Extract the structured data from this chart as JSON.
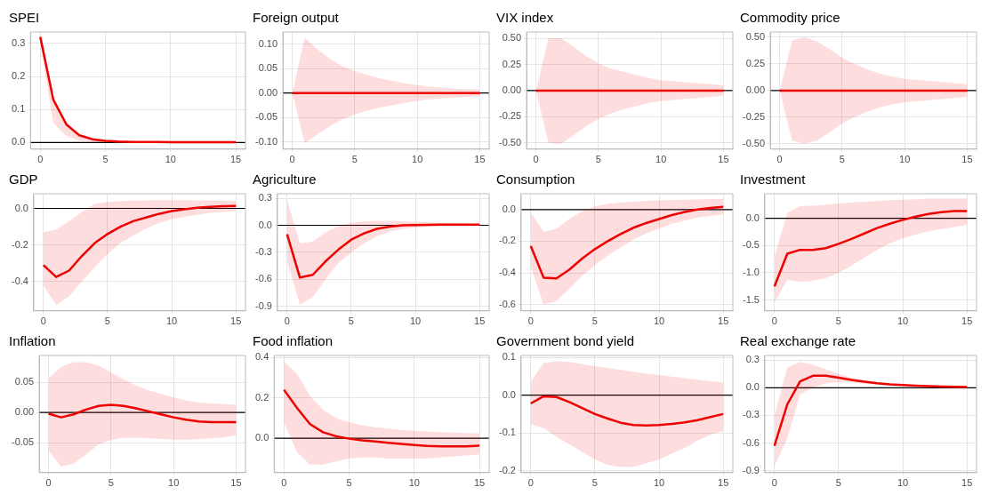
{
  "chart_data": [
    {
      "type": "line",
      "title": "SPEI",
      "x": [
        0,
        1,
        2,
        3,
        4,
        5,
        6,
        7,
        8,
        9,
        10,
        11,
        12,
        13,
        14,
        15
      ],
      "xlim": [
        -0.75,
        15.75
      ],
      "xticks": [
        0,
        5,
        10,
        15
      ],
      "ylim": [
        -0.02,
        0.335
      ],
      "yticks": [
        {
          "value": 0,
          "label": "0.0"
        },
        0.1,
        0.2,
        0.3
      ],
      "grid": true,
      "marker": "none",
      "ref_lines": [
        {
          "axis": "y",
          "value": 0,
          "color": "#000000"
        }
      ],
      "series": [
        {
          "color": "#ee0000",
          "values": [
            0.32,
            0.13,
            0.055,
            0.022,
            0.01,
            0.005,
            0.003,
            0.002,
            0.002,
            0.002,
            0.001,
            0.001,
            0.001,
            0.001,
            0.001,
            0.001
          ],
          "lower": [
            0.3,
            0.06,
            0.02,
            0.006,
            0.002,
            0.001,
            0,
            0,
            0,
            0,
            0,
            0,
            0,
            0,
            0,
            0
          ],
          "upper": [
            0.32,
            0.13,
            0.06,
            0.025,
            0.012,
            0.006,
            0.004,
            0.003,
            0.003,
            0.002,
            0.002,
            0.002,
            0.002,
            0.002,
            0.002,
            0.002
          ]
        }
      ]
    },
    {
      "type": "line",
      "title": "Foreign output",
      "x": [
        0,
        1,
        2,
        3,
        4,
        5,
        6,
        7,
        8,
        9,
        10,
        11,
        12,
        13,
        14,
        15
      ],
      "xlim": [
        -0.75,
        15.75
      ],
      "xticks": [
        0,
        5,
        10,
        15
      ],
      "ylim": [
        -0.115,
        0.125
      ],
      "yticks": [
        {
          "value": -0.1,
          "label": "-0.10"
        },
        -0.05,
        {
          "value": 0,
          "label": "0.00"
        },
        0.05,
        {
          "value": 0.1,
          "label": "0.10"
        }
      ],
      "grid": true,
      "marker": "none",
      "ref_lines": [
        {
          "axis": "y",
          "value": 0,
          "color": "#000000"
        }
      ],
      "series": [
        {
          "color": "#ee0000",
          "values": [
            0,
            0,
            0,
            0,
            0,
            0,
            0,
            0,
            0,
            0,
            0,
            0,
            0,
            0,
            0,
            0
          ],
          "lower": [
            0,
            -0.103,
            -0.085,
            -0.068,
            -0.054,
            -0.044,
            -0.036,
            -0.03,
            -0.025,
            -0.02,
            -0.016,
            -0.013,
            -0.011,
            -0.009,
            -0.008,
            -0.007
          ],
          "upper": [
            0,
            0.113,
            0.09,
            0.07,
            0.055,
            0.045,
            0.037,
            0.03,
            0.025,
            0.02,
            0.016,
            0.013,
            0.011,
            0.009,
            0.008,
            0.007
          ]
        }
      ]
    },
    {
      "type": "line",
      "title": "VIX index",
      "x": [
        0,
        1,
        2,
        3,
        4,
        5,
        6,
        7,
        8,
        9,
        10,
        11,
        12,
        13,
        14,
        15
      ],
      "xlim": [
        -0.75,
        15.75
      ],
      "xticks": [
        0,
        5,
        10,
        15
      ],
      "ylim": [
        -0.56,
        0.56
      ],
      "yticks": [
        {
          "value": -0.5,
          "label": "-0.50"
        },
        -0.25,
        {
          "value": 0,
          "label": "0.00"
        },
        0.25,
        {
          "value": 0.5,
          "label": "0.50"
        }
      ],
      "grid": true,
      "marker": "none",
      "ref_lines": [
        {
          "axis": "y",
          "value": 0,
          "color": "#000000"
        }
      ],
      "series": [
        {
          "color": "#ee0000",
          "values": [
            0,
            0,
            0,
            0,
            0,
            0,
            0,
            0,
            0,
            0,
            0,
            0,
            0,
            0,
            0,
            0
          ],
          "lower": [
            0,
            -0.5,
            -0.51,
            -0.43,
            -0.34,
            -0.27,
            -0.22,
            -0.18,
            -0.15,
            -0.12,
            -0.1,
            -0.09,
            -0.08,
            -0.07,
            -0.06,
            -0.05
          ],
          "upper": [
            0,
            0.5,
            0.5,
            0.42,
            0.33,
            0.26,
            0.21,
            0.18,
            0.15,
            0.12,
            0.1,
            0.09,
            0.08,
            0.07,
            0.06,
            0.05
          ]
        }
      ]
    },
    {
      "type": "line",
      "title": "Commodity price",
      "x": [
        0,
        1,
        2,
        3,
        4,
        5,
        6,
        7,
        8,
        9,
        10,
        11,
        12,
        13,
        14,
        15
      ],
      "xlim": [
        -0.75,
        15.75
      ],
      "xticks": [
        0,
        5,
        10,
        15
      ],
      "ylim": [
        -0.55,
        0.55
      ],
      "yticks": [
        {
          "value": -0.5,
          "label": "-0.50"
        },
        -0.25,
        {
          "value": 0,
          "label": "0.00"
        },
        0.25,
        {
          "value": 0.5,
          "label": "0.50"
        }
      ],
      "grid": true,
      "marker": "none",
      "ref_lines": [
        {
          "axis": "y",
          "value": 0,
          "color": "#000000"
        }
      ],
      "series": [
        {
          "color": "#ee0000",
          "values": [
            0,
            0,
            0,
            0,
            0,
            0,
            0,
            0,
            0,
            0,
            0,
            0,
            0,
            0,
            0,
            0
          ],
          "lower": [
            0,
            -0.47,
            -0.5,
            -0.47,
            -0.39,
            -0.31,
            -0.25,
            -0.2,
            -0.16,
            -0.13,
            -0.11,
            -0.1,
            -0.09,
            -0.08,
            -0.07,
            -0.06
          ],
          "upper": [
            0,
            0.47,
            0.5,
            0.46,
            0.39,
            0.31,
            0.25,
            0.2,
            0.16,
            0.13,
            0.11,
            0.1,
            0.09,
            0.08,
            0.07,
            0.06
          ]
        }
      ]
    },
    {
      "type": "line",
      "title": "GDP",
      "x": [
        0,
        1,
        2,
        3,
        4,
        5,
        6,
        7,
        8,
        9,
        10,
        11,
        12,
        13,
        14,
        15
      ],
      "xlim": [
        -0.75,
        15.75
      ],
      "xticks": [
        0,
        5,
        10,
        15
      ],
      "ylim": [
        -0.56,
        0.08
      ],
      "yticks": [
        -0.4,
        -0.2,
        {
          "value": 0,
          "label": "0.0"
        }
      ],
      "grid": true,
      "marker": "none",
      "ref_lines": [
        {
          "axis": "y",
          "value": 0,
          "color": "#000000"
        }
      ],
      "series": [
        {
          "color": "#ee0000",
          "values": [
            -0.31,
            -0.375,
            -0.34,
            -0.26,
            -0.19,
            -0.14,
            -0.1,
            -0.07,
            -0.05,
            -0.03,
            -0.015,
            -0.005,
            0.003,
            0.008,
            0.012,
            0.013
          ],
          "lower": [
            -0.42,
            -0.53,
            -0.48,
            -0.4,
            -0.32,
            -0.25,
            -0.19,
            -0.15,
            -0.11,
            -0.08,
            -0.06,
            -0.045,
            -0.035,
            -0.025,
            -0.02,
            -0.015
          ],
          "upper": [
            -0.13,
            -0.115,
            -0.07,
            -0.02,
            0.025,
            0.035,
            0.04,
            0.042,
            0.044,
            0.045,
            0.045,
            0.045,
            0.044,
            0.043,
            0.042,
            0.04
          ]
        }
      ]
    },
    {
      "type": "line",
      "title": "Agriculture",
      "x": [
        0,
        1,
        2,
        3,
        4,
        5,
        6,
        7,
        8,
        9,
        10,
        11,
        12,
        13,
        14,
        15
      ],
      "xlim": [
        -0.75,
        15.75
      ],
      "xticks": [
        0,
        5,
        10,
        15
      ],
      "ylim": [
        -0.95,
        0.35
      ],
      "yticks": [
        -0.9,
        -0.6,
        -0.3,
        {
          "value": 0,
          "label": "0.0"
        },
        0.3
      ],
      "grid": true,
      "marker": "none",
      "ref_lines": [
        {
          "axis": "y",
          "value": 0,
          "color": "#000000"
        }
      ],
      "series": [
        {
          "color": "#ee0000",
          "values": [
            -0.1,
            -0.58,
            -0.55,
            -0.4,
            -0.27,
            -0.16,
            -0.09,
            -0.04,
            -0.015,
            0,
            0.003,
            0.006,
            0.008,
            0.008,
            0.008,
            0.008
          ],
          "lower": [
            -0.4,
            -0.88,
            -0.8,
            -0.6,
            -0.42,
            -0.3,
            -0.2,
            -0.12,
            -0.07,
            -0.04,
            -0.025,
            -0.015,
            -0.01,
            -0.005,
            -0.003,
            -0.002
          ],
          "upper": [
            0.28,
            -0.2,
            -0.18,
            -0.08,
            -0.01,
            0.03,
            0.045,
            0.05,
            0.05,
            0.045,
            0.04,
            0.035,
            0.03,
            0.025,
            0.02,
            0.02
          ]
        }
      ]
    },
    {
      "type": "line",
      "title": "Consumption",
      "x": [
        0,
        1,
        2,
        3,
        4,
        5,
        6,
        7,
        8,
        9,
        10,
        11,
        12,
        13,
        14,
        15
      ],
      "xlim": [
        -0.75,
        15.75
      ],
      "xticks": [
        0,
        5,
        10,
        15
      ],
      "ylim": [
        -0.64,
        0.1
      ],
      "yticks": [
        -0.6,
        -0.4,
        -0.2,
        {
          "value": 0,
          "label": "0.0"
        }
      ],
      "grid": true,
      "marker": "none",
      "ref_lines": [
        {
          "axis": "y",
          "value": 0,
          "color": "#000000"
        }
      ],
      "series": [
        {
          "color": "#ee0000",
          "values": [
            -0.23,
            -0.43,
            -0.435,
            -0.38,
            -0.31,
            -0.25,
            -0.2,
            -0.155,
            -0.115,
            -0.085,
            -0.06,
            -0.035,
            -0.015,
            0,
            0.01,
            0.017
          ],
          "lower": [
            -0.36,
            -0.6,
            -0.58,
            -0.5,
            -0.42,
            -0.35,
            -0.29,
            -0.24,
            -0.19,
            -0.15,
            -0.12,
            -0.09,
            -0.07,
            -0.05,
            -0.04,
            -0.03
          ],
          "upper": [
            -0.02,
            -0.14,
            -0.12,
            -0.06,
            -0.01,
            0.02,
            0.035,
            0.045,
            0.05,
            0.055,
            0.058,
            0.06,
            0.062,
            0.064,
            0.066,
            0.068
          ]
        }
      ]
    },
    {
      "type": "line",
      "title": "Investment",
      "x": [
        0,
        1,
        2,
        3,
        4,
        5,
        6,
        7,
        8,
        9,
        10,
        11,
        12,
        13,
        14,
        15
      ],
      "xlim": [
        -0.75,
        15.75
      ],
      "xticks": [
        0,
        5,
        10,
        15
      ],
      "ylim": [
        -1.7,
        0.45
      ],
      "yticks": [
        -1.5,
        {
          "value": -1,
          "label": "-1.0"
        },
        -0.5,
        {
          "value": 0,
          "label": "0.0"
        }
      ],
      "grid": true,
      "marker": "none",
      "ref_lines": [
        {
          "axis": "y",
          "value": 0,
          "color": "#000000"
        }
      ],
      "series": [
        {
          "color": "#ee0000",
          "values": [
            -1.25,
            -0.65,
            -0.58,
            -0.58,
            -0.55,
            -0.47,
            -0.38,
            -0.28,
            -0.18,
            -0.1,
            -0.03,
            0.03,
            0.08,
            0.11,
            0.13,
            0.13
          ],
          "lower": [
            -1.55,
            -1.13,
            -1.17,
            -1.15,
            -1.1,
            -1,
            -0.87,
            -0.72,
            -0.58,
            -0.46,
            -0.37,
            -0.3,
            -0.24,
            -0.2,
            -0.16,
            -0.12
          ],
          "upper": [
            -0.7,
            0.1,
            0.22,
            0.23,
            0.25,
            0.27,
            0.29,
            0.3,
            0.32,
            0.33,
            0.34,
            0.35,
            0.36,
            0.36,
            0.36,
            0.36
          ]
        }
      ]
    },
    {
      "type": "line",
      "title": "Inflation",
      "x": [
        0,
        1,
        2,
        3,
        4,
        5,
        6,
        7,
        8,
        9,
        10,
        11,
        12,
        13,
        14,
        15
      ],
      "xlim": [
        -0.75,
        15.75
      ],
      "xticks": [
        0,
        5,
        10,
        15
      ],
      "ylim": [
        -0.1,
        0.095
      ],
      "yticks": [
        -0.05,
        {
          "value": 0,
          "label": "0.00"
        },
        0.05
      ],
      "grid": true,
      "marker": "none",
      "ref_lines": [
        {
          "axis": "y",
          "value": 0,
          "color": "#000000"
        }
      ],
      "series": [
        {
          "color": "#ee0000",
          "values": [
            -0.002,
            -0.008,
            -0.003,
            0.005,
            0.011,
            0.013,
            0.011,
            0.007,
            0.002,
            -0.003,
            -0.008,
            -0.012,
            -0.015,
            -0.016,
            -0.016,
            -0.016
          ],
          "lower": [
            -0.063,
            -0.09,
            -0.085,
            -0.07,
            -0.053,
            -0.045,
            -0.042,
            -0.042,
            -0.043,
            -0.044,
            -0.045,
            -0.045,
            -0.044,
            -0.043,
            -0.041,
            -0.038
          ],
          "upper": [
            0.057,
            0.076,
            0.084,
            0.084,
            0.078,
            0.067,
            0.055,
            0.045,
            0.037,
            0.031,
            0.025,
            0.02,
            0.017,
            0.015,
            0.014,
            0.013
          ]
        }
      ]
    },
    {
      "type": "line",
      "title": "Food inflation",
      "x": [
        0,
        1,
        2,
        3,
        4,
        5,
        6,
        7,
        8,
        9,
        10,
        11,
        12,
        13,
        14,
        15
      ],
      "xlim": [
        -0.75,
        15.75
      ],
      "xticks": [
        0,
        5,
        10,
        15
      ],
      "ylim": [
        -0.17,
        0.41
      ],
      "yticks": [
        {
          "value": 0,
          "label": "0.0"
        },
        0.2,
        0.4
      ],
      "grid": true,
      "marker": "none",
      "ref_lines": [
        {
          "axis": "y",
          "value": 0,
          "color": "#000000"
        }
      ],
      "series": [
        {
          "color": "#ee0000",
          "values": [
            0.24,
            0.15,
            0.07,
            0.03,
            0.01,
            -0.002,
            -0.01,
            -0.016,
            -0.022,
            -0.028,
            -0.033,
            -0.038,
            -0.04,
            -0.04,
            -0.04,
            -0.037
          ],
          "lower": [
            0.08,
            -0.07,
            -0.13,
            -0.13,
            -0.115,
            -0.1,
            -0.095,
            -0.095,
            -0.1,
            -0.1,
            -0.1,
            -0.1,
            -0.095,
            -0.09,
            -0.085,
            -0.08
          ],
          "upper": [
            0.38,
            0.32,
            0.21,
            0.14,
            0.1,
            0.08,
            0.065,
            0.055,
            0.048,
            0.042,
            0.037,
            0.033,
            0.03,
            0.028,
            0.026,
            0.025
          ]
        }
      ]
    },
    {
      "type": "line",
      "title": "Government bond yield",
      "x": [
        0,
        1,
        2,
        3,
        4,
        5,
        6,
        7,
        8,
        9,
        10,
        11,
        12,
        13,
        14,
        15
      ],
      "xlim": [
        -0.75,
        15.75
      ],
      "xticks": [
        0,
        5,
        10,
        15
      ],
      "ylim": [
        -0.205,
        0.105
      ],
      "yticks": [
        -0.2,
        -0.1,
        {
          "value": 0,
          "label": "0.0"
        },
        0.1
      ],
      "grid": true,
      "marker": "none",
      "ref_lines": [
        {
          "axis": "y",
          "value": 0,
          "color": "#000000"
        }
      ],
      "series": [
        {
          "color": "#ee0000",
          "values": [
            -0.022,
            -0.003,
            -0.005,
            -0.018,
            -0.034,
            -0.05,
            -0.062,
            -0.073,
            -0.079,
            -0.08,
            -0.079,
            -0.076,
            -0.072,
            -0.066,
            -0.058,
            -0.05
          ],
          "lower": [
            -0.077,
            -0.087,
            -0.11,
            -0.13,
            -0.15,
            -0.17,
            -0.185,
            -0.19,
            -0.19,
            -0.18,
            -0.17,
            -0.155,
            -0.14,
            -0.12,
            -0.105,
            -0.095
          ],
          "upper": [
            0.035,
            0.085,
            0.09,
            0.088,
            0.082,
            0.077,
            0.072,
            0.067,
            0.062,
            0.057,
            0.053,
            0.049,
            0.045,
            0.041,
            0.037,
            0.033
          ]
        }
      ]
    },
    {
      "type": "line",
      "title": "Real exchange rate",
      "x": [
        0,
        1,
        2,
        3,
        4,
        5,
        6,
        7,
        8,
        9,
        10,
        11,
        12,
        13,
        14,
        15
      ],
      "xlim": [
        -0.75,
        15.75
      ],
      "xticks": [
        0,
        5,
        10,
        15
      ],
      "ylim": [
        -0.92,
        0.35
      ],
      "yticks": [
        -0.9,
        -0.6,
        -0.3,
        {
          "value": 0,
          "label": "0.0"
        },
        0.3
      ],
      "grid": true,
      "marker": "none",
      "ref_lines": [
        {
          "axis": "y",
          "value": 0,
          "color": "#000000"
        }
      ],
      "series": [
        {
          "color": "#ee0000",
          "values": [
            -0.63,
            -0.18,
            0.07,
            0.13,
            0.13,
            0.11,
            0.085,
            0.065,
            0.048,
            0.037,
            0.03,
            0.022,
            0.017,
            0.013,
            0.01,
            0.008
          ],
          "lower": [
            -0.85,
            -0.55,
            -0.07,
            0,
            0.05,
            0.06,
            0.055,
            0.045,
            0.035,
            0.028,
            0.022,
            0.017,
            0.013,
            0.01,
            0.008,
            0.006
          ],
          "upper": [
            -0.3,
            0.22,
            0.28,
            0.25,
            0.2,
            0.15,
            0.11,
            0.08,
            0.06,
            0.045,
            0.035,
            0.028,
            0.022,
            0.018,
            0.014,
            0.012
          ]
        }
      ]
    }
  ]
}
